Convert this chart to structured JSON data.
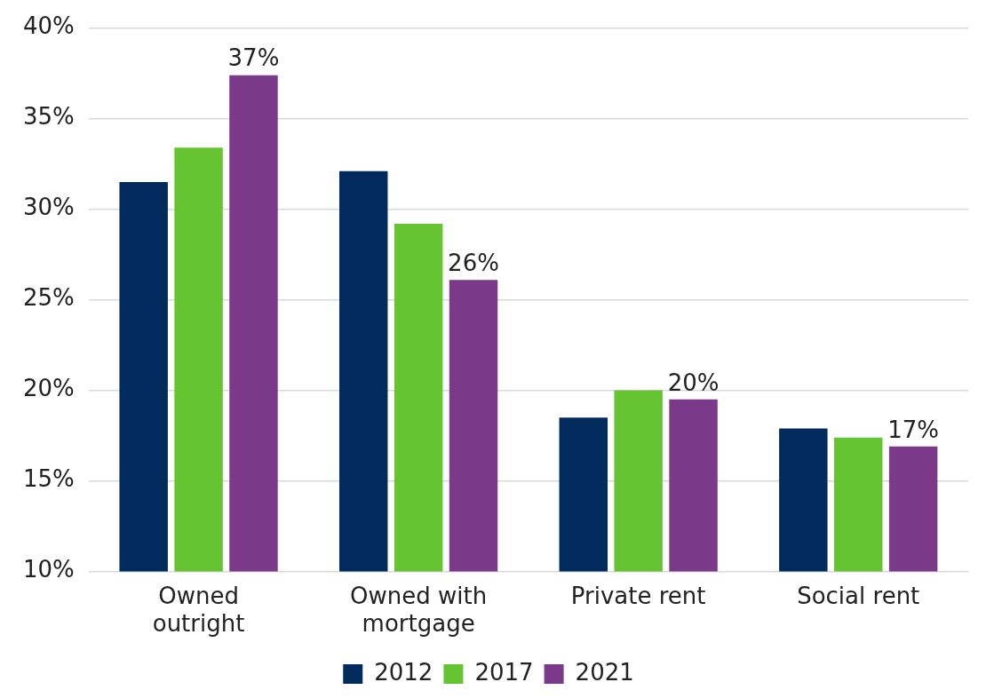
{
  "chart_data": {
    "type": "bar",
    "categories": [
      "Owned outright",
      "Owned with mortgage",
      "Private rent",
      "Social rent"
    ],
    "series": [
      {
        "name": "2012",
        "color": "#002b5c",
        "values": [
          31.5,
          32.1,
          18.5,
          17.9
        ]
      },
      {
        "name": "2017",
        "color": "#66c433",
        "values": [
          33.4,
          29.2,
          20.0,
          17.4
        ]
      },
      {
        "name": "2021",
        "color": "#7b3a89",
        "values": [
          37.4,
          26.1,
          19.5,
          16.9
        ],
        "value_labels": [
          "37%",
          "26%",
          "20%",
          "17%"
        ]
      }
    ],
    "ylim": [
      10,
      40
    ],
    "yticks": [
      {
        "value": 10,
        "label": "10%"
      },
      {
        "value": 15,
        "label": "15%"
      },
      {
        "value": 20,
        "label": "20%"
      },
      {
        "value": 25,
        "label": "25%"
      },
      {
        "value": 30,
        "label": "30%"
      },
      {
        "value": 35,
        "label": "35%"
      },
      {
        "value": 40,
        "label": "40%"
      }
    ],
    "grid": "y",
    "legend": "bottom"
  }
}
